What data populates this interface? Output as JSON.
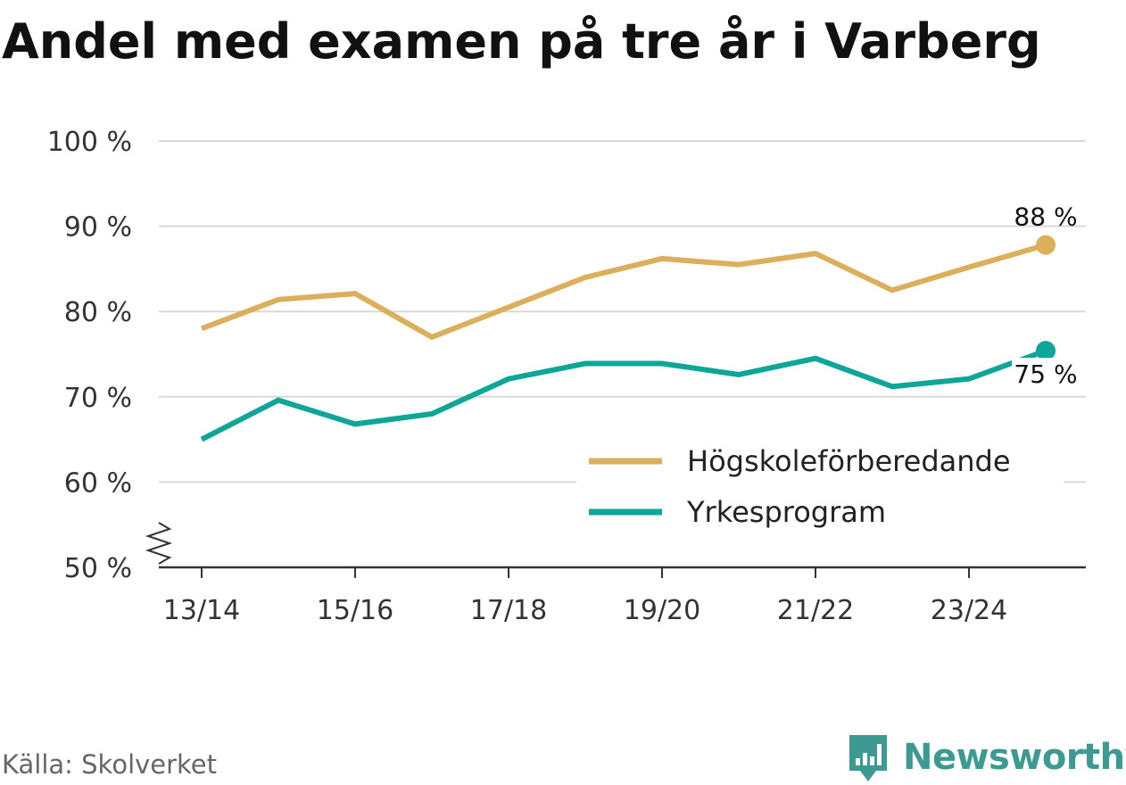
{
  "title": "Andel med examen på tre år i Varberg",
  "source": "Källa: Skolverket",
  "brand": {
    "name": "Newsworthy",
    "icon": "bar-chart-logo-icon",
    "color": "#3d9a92"
  },
  "chart_data": {
    "type": "line",
    "title": "Andel med examen på tre år i Varberg",
    "x": [
      "13/14",
      "14/15",
      "15/16",
      "16/17",
      "17/18",
      "18/19",
      "19/20",
      "20/21",
      "21/22",
      "22/23",
      "23/24",
      "24/25"
    ],
    "x_tick_labels": [
      "13/14",
      "15/16",
      "17/18",
      "19/20",
      "21/22",
      "23/24"
    ],
    "ylim": [
      50,
      100
    ],
    "y_ticks": [
      50,
      60,
      70,
      80,
      90,
      100
    ],
    "y_tick_labels": [
      "50 %",
      "60 %",
      "70 %",
      "80 %",
      "90 %",
      "100 %"
    ],
    "axis_break": true,
    "grid": true,
    "legend_position": "right",
    "series": [
      {
        "name": "Högskoleförberedande",
        "color": "#dcaf5c",
        "values": [
          78.0,
          81.4,
          82.1,
          77.0,
          80.5,
          84.0,
          86.2,
          85.5,
          86.8,
          82.5,
          85.2,
          87.8
        ],
        "end_label": "88 %"
      },
      {
        "name": "Yrkesprogram",
        "color": "#0ea699",
        "values": [
          65.0,
          69.6,
          66.8,
          68.0,
          72.1,
          73.9,
          73.9,
          72.6,
          74.5,
          71.2,
          72.1,
          75.4
        ],
        "end_label": "75 %"
      }
    ]
  }
}
